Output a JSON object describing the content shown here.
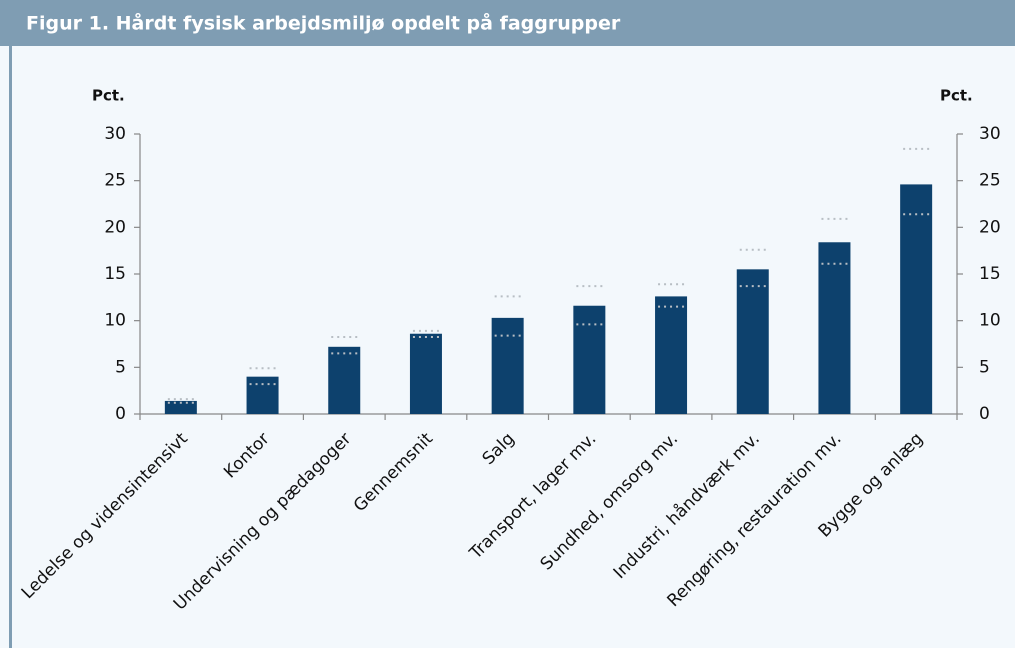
{
  "chart_data": {
    "type": "bar",
    "title": "Figur 1. Hårdt fysisk arbejdsmiljø opdelt på faggrupper",
    "y_label": "Pct.",
    "y2_label": "Pct.",
    "categories": [
      "Ledelse og vidensintensivt",
      "Kontor",
      "Undervisning og pædagoger",
      "Gennemsnit",
      "Salg",
      "Transport, lager mv.",
      "Sundhed, omsorg mv.",
      "Industri, håndværk mv.",
      "Rengøring, restauration mv.",
      "Bygge og anlæg"
    ],
    "values": [
      1.4,
      4.0,
      7.2,
      8.6,
      10.3,
      11.6,
      12.6,
      15.5,
      18.4,
      24.6
    ],
    "error_low": [
      1.2,
      3.2,
      6.5,
      8.25,
      8.4,
      9.6,
      11.5,
      13.7,
      16.1,
      21.4
    ],
    "error_high": [
      1.6,
      4.9,
      8.25,
      8.9,
      12.6,
      13.7,
      13.9,
      17.6,
      20.9,
      28.4
    ],
    "color": "#0d416d",
    "ylim": [
      0,
      30
    ],
    "yticks": [
      0,
      5,
      10,
      15,
      20,
      25,
      30
    ],
    "y2lim": [
      0,
      30
    ],
    "y2ticks": [
      0,
      5,
      10,
      15,
      20,
      25,
      30
    ],
    "grid": false
  }
}
